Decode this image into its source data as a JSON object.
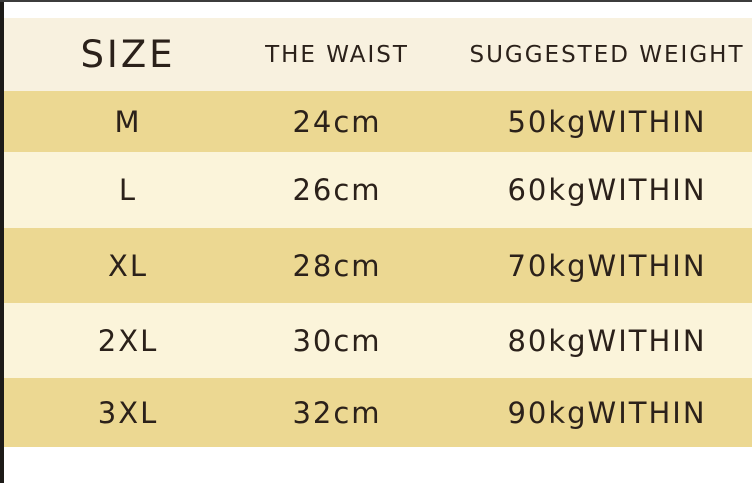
{
  "chart_data": {
    "type": "table",
    "title": "",
    "columns": [
      {
        "key": "size",
        "label": "SIZE"
      },
      {
        "key": "waist",
        "label": "THE WAIST"
      },
      {
        "key": "weight",
        "label": "SUGGESTED WEIGHT"
      }
    ],
    "rows": [
      {
        "size": "M",
        "waist": "24cm",
        "weight": "50kgWITHIN"
      },
      {
        "size": "L",
        "waist": "26cm",
        "weight": "60kgWITHIN"
      },
      {
        "size": "XL",
        "waist": "28cm",
        "weight": "70kgWITHIN"
      },
      {
        "size": "2XL",
        "waist": "30cm",
        "weight": "80kgWITHIN"
      },
      {
        "size": "3XL",
        "waist": "32cm",
        "weight": "90kgWITHIN"
      }
    ],
    "legend": "none",
    "grid": "off",
    "row_striping": "alternating, starting dark on first data row"
  },
  "colors": {
    "header-bg": "#f8f1df",
    "dark-row": "#ecd892",
    "light-row": "#fbf4da",
    "text": "#2b211a",
    "left-strip": "#1d1b18",
    "page-bg": "#ffffff"
  }
}
